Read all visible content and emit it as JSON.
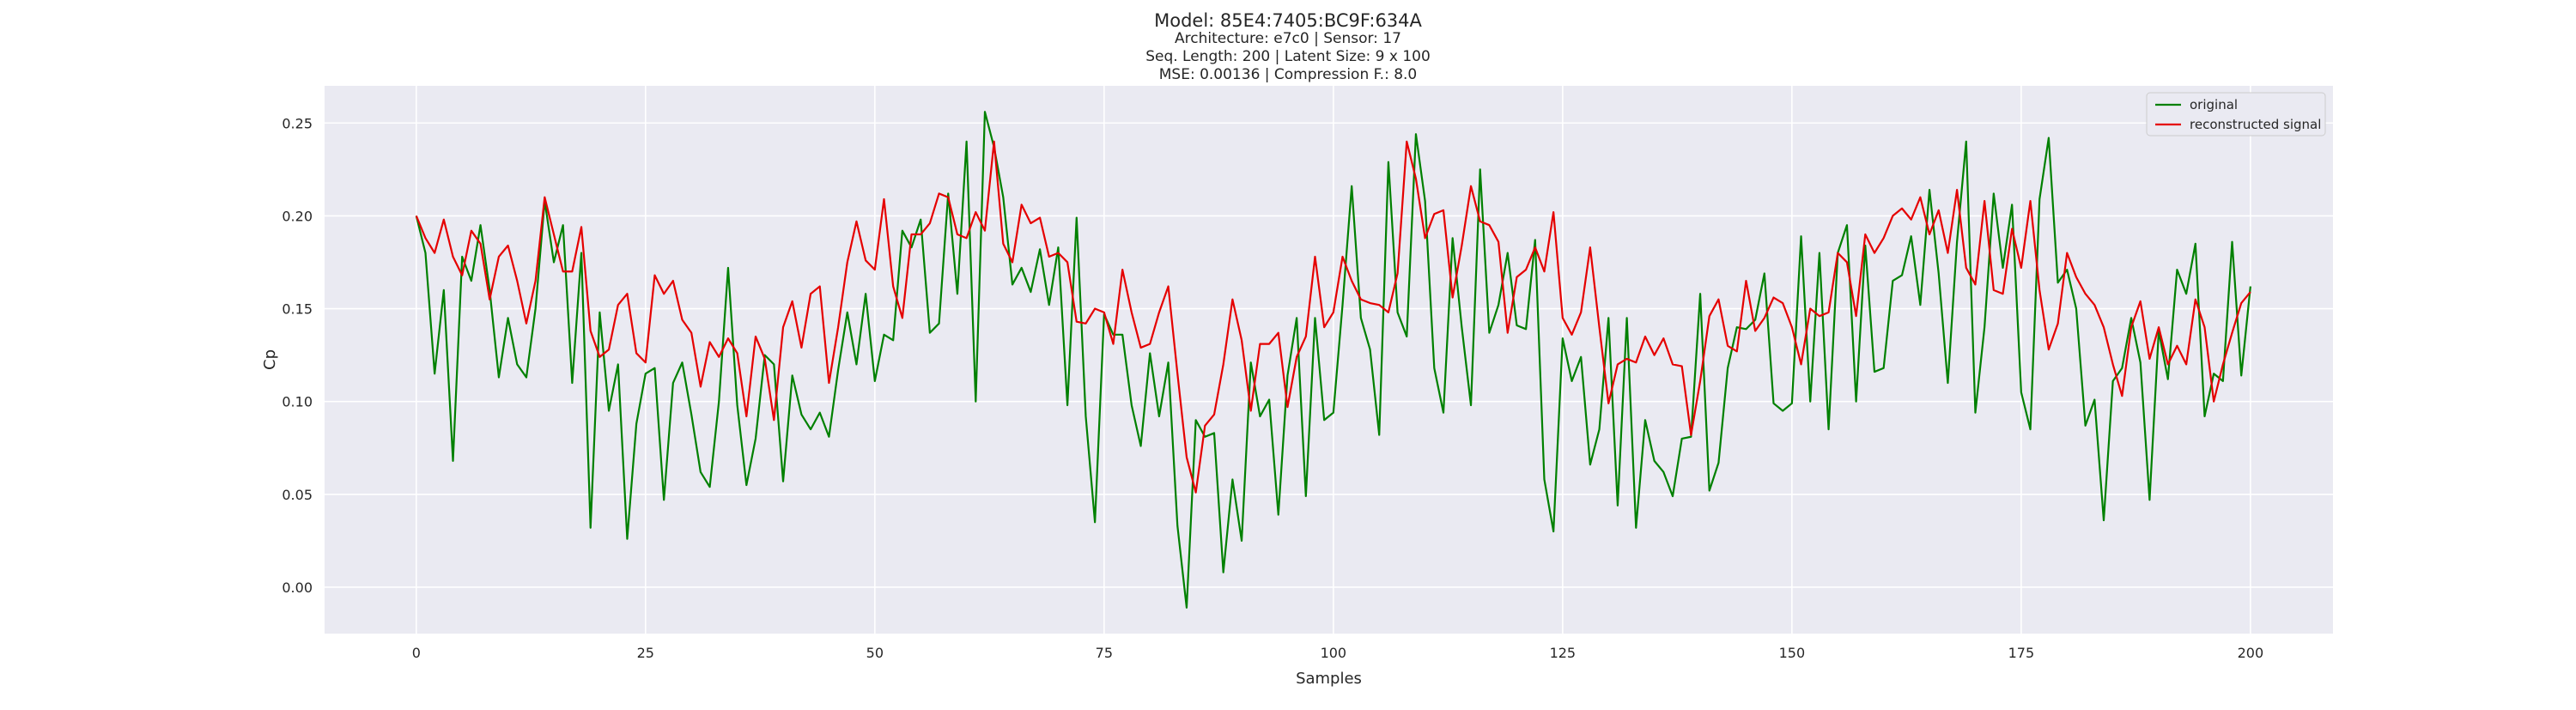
{
  "header": {
    "title": "Model: 85E4:7405:BC9F:634A",
    "subtitle_lines": [
      "Architecture: e7c0 | Sensor: 17",
      "Seq. Length: 200 | Latent Size: 9 x 100",
      "MSE: 0.00136 | Compression F.: 8.0"
    ]
  },
  "colors": {
    "original": "#008000",
    "reconstructed": "#e50000",
    "plot_background": "#eaeaf2",
    "grid": "#ffffff"
  },
  "chart_data": {
    "type": "line",
    "xlabel": "Samples",
    "ylabel": "Cp",
    "xlim": [
      -10,
      209
    ],
    "ylim": [
      -0.025,
      0.27
    ],
    "xticks": [
      0,
      25,
      50,
      75,
      100,
      125,
      150,
      175,
      200
    ],
    "yticks": [
      0.0,
      0.05,
      0.1,
      0.15,
      0.2,
      0.25
    ],
    "xtick_labels": [
      "0",
      "25",
      "50",
      "75",
      "100",
      "125",
      "150",
      "175",
      "200"
    ],
    "ytick_labels": [
      "0.00",
      "0.05",
      "0.10",
      "0.15",
      "0.20",
      "0.25"
    ],
    "grid": true,
    "legend_position": "top-right",
    "series": [
      {
        "name": "original",
        "values": [
          0.2,
          0.18,
          0.115,
          0.16,
          0.068,
          0.178,
          0.165,
          0.195,
          0.16,
          0.113,
          0.145,
          0.12,
          0.113,
          0.15,
          0.208,
          0.175,
          0.195,
          0.11,
          0.18,
          0.032,
          0.148,
          0.095,
          0.12,
          0.026,
          0.088,
          0.115,
          0.118,
          0.047,
          0.11,
          0.121,
          0.093,
          0.062,
          0.054,
          0.1,
          0.172,
          0.098,
          0.055,
          0.08,
          0.125,
          0.12,
          0.057,
          0.114,
          0.093,
          0.085,
          0.094,
          0.081,
          0.117,
          0.148,
          0.12,
          0.158,
          0.111,
          0.136,
          0.133,
          0.192,
          0.183,
          0.198,
          0.137,
          0.142,
          0.212,
          0.158,
          0.24,
          0.1,
          0.256,
          0.237,
          0.21,
          0.163,
          0.172,
          0.159,
          0.182,
          0.152,
          0.183,
          0.098,
          0.199,
          0.092,
          0.035,
          0.147,
          0.136,
          0.136,
          0.098,
          0.076,
          0.126,
          0.092,
          0.121,
          0.033,
          -0.011,
          0.09,
          0.081,
          0.083,
          0.008,
          0.058,
          0.025,
          0.121,
          0.092,
          0.101,
          0.039,
          0.114,
          0.145,
          0.049,
          0.145,
          0.09,
          0.094,
          0.152,
          0.216,
          0.145,
          0.128,
          0.082,
          0.229,
          0.148,
          0.135,
          0.244,
          0.208,
          0.118,
          0.094,
          0.188,
          0.14,
          0.098,
          0.225,
          0.137,
          0.152,
          0.18,
          0.141,
          0.139,
          0.187,
          0.058,
          0.03,
          0.134,
          0.111,
          0.124,
          0.066,
          0.085,
          0.145,
          0.044,
          0.145,
          0.032,
          0.09,
          0.068,
          0.062,
          0.049,
          0.08,
          0.081,
          0.158,
          0.052,
          0.067,
          0.118,
          0.14,
          0.139,
          0.144,
          0.169,
          0.099,
          0.095,
          0.099,
          0.189,
          0.1,
          0.18,
          0.085,
          0.18,
          0.195,
          0.1,
          0.184,
          0.116,
          0.118,
          0.165,
          0.168,
          0.189,
          0.152,
          0.214,
          0.169,
          0.11,
          0.186,
          0.24,
          0.094,
          0.14,
          0.212,
          0.172,
          0.206,
          0.105,
          0.085,
          0.209,
          0.242,
          0.164,
          0.171,
          0.15,
          0.087,
          0.101,
          0.036,
          0.111,
          0.118,
          0.145,
          0.121,
          0.047,
          0.138,
          0.112,
          0.171,
          0.158,
          0.185,
          0.092,
          0.115,
          0.111,
          0.186,
          0.114,
          0.162
        ]
      },
      {
        "name": "reconstructed signal",
        "values": [
          0.2,
          0.188,
          0.18,
          0.198,
          0.178,
          0.168,
          0.192,
          0.185,
          0.155,
          0.178,
          0.184,
          0.165,
          0.142,
          0.165,
          0.21,
          0.19,
          0.17,
          0.17,
          0.194,
          0.138,
          0.124,
          0.128,
          0.152,
          0.158,
          0.126,
          0.121,
          0.168,
          0.158,
          0.165,
          0.144,
          0.137,
          0.108,
          0.132,
          0.124,
          0.134,
          0.126,
          0.092,
          0.135,
          0.123,
          0.09,
          0.14,
          0.154,
          0.129,
          0.158,
          0.162,
          0.11,
          0.14,
          0.175,
          0.197,
          0.176,
          0.171,
          0.209,
          0.162,
          0.145,
          0.19,
          0.19,
          0.196,
          0.212,
          0.21,
          0.19,
          0.188,
          0.202,
          0.192,
          0.24,
          0.185,
          0.175,
          0.206,
          0.196,
          0.199,
          0.178,
          0.18,
          0.175,
          0.143,
          0.142,
          0.15,
          0.148,
          0.131,
          0.171,
          0.148,
          0.129,
          0.131,
          0.148,
          0.162,
          0.115,
          0.07,
          0.051,
          0.087,
          0.093,
          0.12,
          0.155,
          0.133,
          0.095,
          0.131,
          0.131,
          0.137,
          0.097,
          0.124,
          0.135,
          0.178,
          0.14,
          0.148,
          0.178,
          0.165,
          0.155,
          0.153,
          0.152,
          0.148,
          0.169,
          0.24,
          0.22,
          0.188,
          0.201,
          0.203,
          0.156,
          0.184,
          0.216,
          0.197,
          0.195,
          0.186,
          0.137,
          0.167,
          0.171,
          0.183,
          0.17,
          0.202,
          0.145,
          0.136,
          0.148,
          0.183,
          0.14,
          0.099,
          0.12,
          0.123,
          0.121,
          0.135,
          0.125,
          0.134,
          0.12,
          0.119,
          0.082,
          0.111,
          0.146,
          0.155,
          0.13,
          0.127,
          0.165,
          0.138,
          0.145,
          0.156,
          0.153,
          0.14,
          0.12,
          0.15,
          0.146,
          0.148,
          0.18,
          0.175,
          0.146,
          0.19,
          0.18,
          0.188,
          0.2,
          0.204,
          0.198,
          0.21,
          0.19,
          0.203,
          0.18,
          0.214,
          0.172,
          0.163,
          0.208,
          0.16,
          0.158,
          0.193,
          0.172,
          0.208,
          0.16,
          0.128,
          0.142,
          0.18,
          0.167,
          0.158,
          0.152,
          0.14,
          0.12,
          0.103,
          0.14,
          0.154,
          0.123,
          0.14,
          0.12,
          0.13,
          0.12,
          0.155,
          0.14,
          0.1,
          0.12,
          0.137,
          0.153,
          0.159
        ]
      }
    ]
  }
}
